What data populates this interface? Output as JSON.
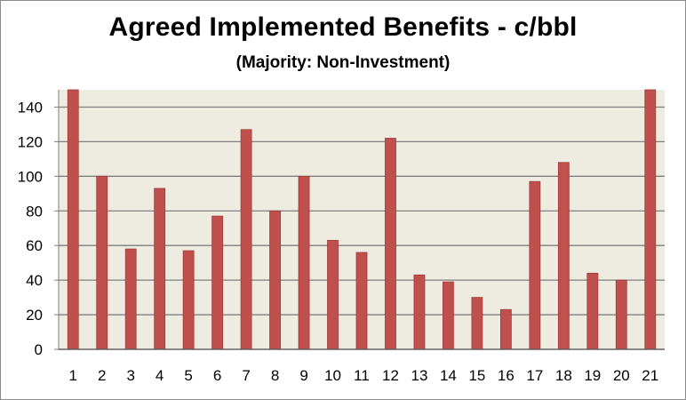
{
  "chart_data": {
    "type": "bar",
    "title": "Agreed Implemented Benefits - c/bbl",
    "subtitle": "(Majority: Non-Investment)",
    "xlabel": "",
    "ylabel": "",
    "categories": [
      "1",
      "2",
      "3",
      "4",
      "5",
      "6",
      "7",
      "8",
      "9",
      "10",
      "11",
      "12",
      "13",
      "14",
      "15",
      "16",
      "17",
      "18",
      "19",
      "20",
      "21"
    ],
    "values": [
      150,
      100,
      58,
      93,
      57,
      77,
      127,
      80,
      100,
      63,
      56,
      122,
      43,
      39,
      30,
      23,
      97,
      108,
      44,
      40,
      150
    ],
    "ylim": [
      0,
      150
    ],
    "yticks": [
      0,
      20,
      40,
      60,
      80,
      100,
      120,
      140
    ],
    "grid": true,
    "colors": {
      "bar": "#c0504d",
      "bar_edge": "#a03a37",
      "plot_background": "#eeece1",
      "grid": "#7f7f7f"
    }
  }
}
